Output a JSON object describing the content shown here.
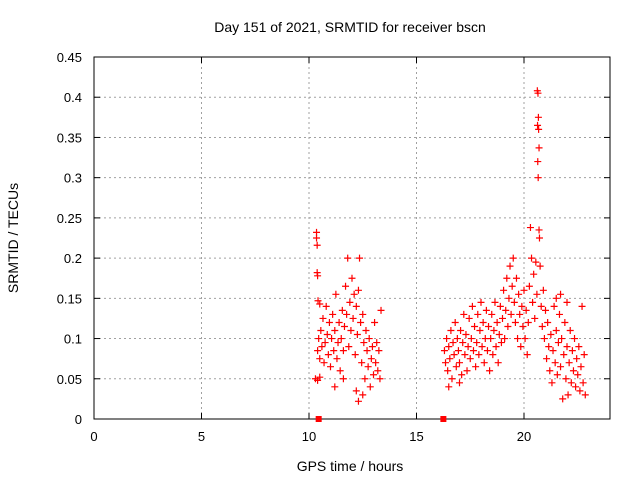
{
  "chart_data": {
    "type": "scatter",
    "title": "Day 151 of 2021, SRMTID for receiver bscn",
    "xlabel": "GPS time / hours",
    "ylabel": "SRMTID / TECUs",
    "xlim": [
      0,
      24
    ],
    "ylim": [
      0,
      0.45
    ],
    "x_ticks": [
      0,
      5,
      10,
      15,
      20
    ],
    "x_tick_labels": [
      "0",
      "5",
      "10",
      "15",
      "20"
    ],
    "y_ticks": [
      0,
      0.05,
      0.1,
      0.15,
      0.2,
      0.25,
      0.3,
      0.35,
      0.4,
      0.45
    ],
    "y_tick_labels": [
      "0",
      "0.05",
      "0.1",
      "0.15",
      "0.2",
      "0.25",
      "0.3",
      "0.35",
      "0.4",
      "0.45"
    ],
    "grid": true,
    "marker": "+",
    "color": "#ff0000",
    "zero_markers": {
      "marker": "square",
      "points": [
        [
          10.45,
          0
        ],
        [
          16.25,
          0
        ]
      ]
    },
    "series": [
      {
        "name": "segment-1",
        "points": [
          [
            10.35,
            0.232
          ],
          [
            10.35,
            0.225
          ],
          [
            10.38,
            0.216
          ],
          [
            10.38,
            0.182
          ],
          [
            10.4,
            0.178
          ],
          [
            10.42,
            0.147
          ],
          [
            10.5,
            0.143
          ],
          [
            10.3,
            0.05
          ],
          [
            10.4,
            0.048
          ],
          [
            10.5,
            0.052
          ],
          [
            10.4,
            0.085
          ],
          [
            10.45,
            0.1
          ],
          [
            10.5,
            0.075
          ],
          [
            10.55,
            0.11
          ],
          [
            10.6,
            0.09
          ],
          [
            10.65,
            0.125
          ],
          [
            10.7,
            0.07
          ],
          [
            10.75,
            0.095
          ],
          [
            10.8,
            0.14
          ],
          [
            10.85,
            0.105
          ],
          [
            10.9,
            0.08
          ],
          [
            10.95,
            0.12
          ],
          [
            11.0,
            0.065
          ],
          [
            11.05,
            0.1
          ],
          [
            11.1,
            0.13
          ],
          [
            11.15,
            0.085
          ],
          [
            11.2,
            0.11
          ],
          [
            11.25,
            0.155
          ],
          [
            11.3,
            0.075
          ],
          [
            11.35,
            0.095
          ],
          [
            11.4,
            0.12
          ],
          [
            11.45,
            0.06
          ],
          [
            11.5,
            0.1
          ],
          [
            11.55,
            0.135
          ],
          [
            11.6,
            0.085
          ],
          [
            11.65,
            0.115
          ],
          [
            11.7,
            0.165
          ],
          [
            11.75,
            0.13
          ],
          [
            11.8,
            0.2
          ],
          [
            11.85,
            0.09
          ],
          [
            11.9,
            0.145
          ],
          [
            11.95,
            0.11
          ],
          [
            12.0,
            0.175
          ],
          [
            12.05,
            0.125
          ],
          [
            12.1,
            0.155
          ],
          [
            12.15,
            0.08
          ],
          [
            12.2,
            0.14
          ],
          [
            12.25,
            0.105
          ],
          [
            12.3,
            0.16
          ],
          [
            12.35,
            0.2
          ],
          [
            12.4,
            0.12
          ],
          [
            12.45,
            0.07
          ],
          [
            12.5,
            0.13
          ],
          [
            12.55,
            0.095
          ],
          [
            12.6,
            0.05
          ],
          [
            12.65,
            0.11
          ],
          [
            12.7,
            0.085
          ],
          [
            12.75,
            0.065
          ],
          [
            12.8,
            0.1
          ],
          [
            12.85,
            0.04
          ],
          [
            12.9,
            0.075
          ],
          [
            12.95,
            0.09
          ],
          [
            13.0,
            0.055
          ],
          [
            13.05,
            0.12
          ],
          [
            13.1,
            0.07
          ],
          [
            13.15,
            0.095
          ],
          [
            13.2,
            0.06
          ],
          [
            13.25,
            0.085
          ],
          [
            13.3,
            0.05
          ],
          [
            13.35,
            0.135
          ],
          [
            12.2,
            0.035
          ],
          [
            12.3,
            0.022
          ],
          [
            12.5,
            0.03
          ],
          [
            11.2,
            0.04
          ],
          [
            11.6,
            0.05
          ]
        ]
      },
      {
        "name": "segment-2",
        "points": [
          [
            16.3,
            0.085
          ],
          [
            16.35,
            0.07
          ],
          [
            16.4,
            0.1
          ],
          [
            16.45,
            0.06
          ],
          [
            16.5,
            0.09
          ],
          [
            16.55,
            0.075
          ],
          [
            16.6,
            0.11
          ],
          [
            16.65,
            0.05
          ],
          [
            16.7,
            0.095
          ],
          [
            16.75,
            0.08
          ],
          [
            16.8,
            0.12
          ],
          [
            16.85,
            0.065
          ],
          [
            16.9,
            0.1
          ],
          [
            16.95,
            0.085
          ],
          [
            17.0,
            0.07
          ],
          [
            17.05,
            0.11
          ],
          [
            17.1,
            0.055
          ],
          [
            17.15,
            0.095
          ],
          [
            17.2,
            0.13
          ],
          [
            17.25,
            0.08
          ],
          [
            17.3,
            0.105
          ],
          [
            17.35,
            0.06
          ],
          [
            17.4,
            0.09
          ],
          [
            17.45,
            0.125
          ],
          [
            17.5,
            0.075
          ],
          [
            17.55,
            0.1
          ],
          [
            17.6,
            0.14
          ],
          [
            17.65,
            0.085
          ],
          [
            17.7,
            0.115
          ],
          [
            17.75,
            0.065
          ],
          [
            17.8,
            0.095
          ],
          [
            17.85,
            0.13
          ],
          [
            17.9,
            0.08
          ],
          [
            17.95,
            0.11
          ],
          [
            18.0,
            0.145
          ],
          [
            18.05,
            0.09
          ],
          [
            18.1,
            0.12
          ],
          [
            18.15,
            0.07
          ],
          [
            18.2,
            0.1
          ],
          [
            18.25,
            0.135
          ],
          [
            18.3,
            0.085
          ],
          [
            18.35,
            0.115
          ],
          [
            18.4,
            0.06
          ],
          [
            18.45,
            0.1
          ],
          [
            18.5,
            0.13
          ],
          [
            18.55,
            0.08
          ],
          [
            18.6,
            0.11
          ],
          [
            18.65,
            0.145
          ],
          [
            18.7,
            0.09
          ],
          [
            18.75,
            0.12
          ],
          [
            18.8,
            0.07
          ],
          [
            18.85,
            0.105
          ],
          [
            18.9,
            0.14
          ],
          [
            18.95,
            0.095
          ],
          [
            19.0,
            0.125
          ],
          [
            19.05,
            0.16
          ],
          [
            19.1,
            0.1
          ],
          [
            19.15,
            0.135
          ],
          [
            19.2,
            0.175
          ],
          [
            19.25,
            0.115
          ],
          [
            19.3,
            0.15
          ],
          [
            19.35,
            0.19
          ],
          [
            19.4,
            0.13
          ],
          [
            19.45,
            0.165
          ],
          [
            19.5,
            0.2
          ],
          [
            19.55,
            0.145
          ],
          [
            19.6,
            0.12
          ],
          [
            19.65,
            0.175
          ],
          [
            19.7,
            0.1
          ],
          [
            19.75,
            0.155
          ],
          [
            19.8,
            0.13
          ],
          [
            19.85,
            0.09
          ],
          [
            19.9,
            0.14
          ],
          [
            19.95,
            0.115
          ],
          [
            20.0,
            0.16
          ],
          [
            20.05,
            0.1
          ],
          [
            20.1,
            0.135
          ],
          [
            20.15,
            0.08
          ],
          [
            20.2,
            0.12
          ],
          [
            20.25,
            0.165
          ],
          [
            20.3,
            0.238
          ],
          [
            20.35,
            0.2
          ],
          [
            20.4,
            0.145
          ],
          [
            20.45,
            0.18
          ],
          [
            20.5,
            0.125
          ],
          [
            20.55,
            0.195
          ],
          [
            20.6,
            0.155
          ],
          [
            20.62,
            0.408
          ],
          [
            20.65,
            0.405
          ],
          [
            20.67,
            0.375
          ],
          [
            20.63,
            0.365
          ],
          [
            20.68,
            0.36
          ],
          [
            20.7,
            0.337
          ],
          [
            20.64,
            0.32
          ],
          [
            20.66,
            0.3
          ],
          [
            20.7,
            0.235
          ],
          [
            20.72,
            0.225
          ],
          [
            20.75,
            0.19
          ],
          [
            20.8,
            0.14
          ],
          [
            20.85,
            0.115
          ],
          [
            20.9,
            0.16
          ],
          [
            20.95,
            0.1
          ],
          [
            21.0,
            0.135
          ],
          [
            21.05,
            0.075
          ],
          [
            21.1,
            0.12
          ],
          [
            21.15,
            0.09
          ],
          [
            21.2,
            0.06
          ],
          [
            21.25,
            0.105
          ],
          [
            21.3,
            0.045
          ],
          [
            21.35,
            0.085
          ],
          [
            21.4,
            0.14
          ],
          [
            21.45,
            0.07
          ],
          [
            21.5,
            0.11
          ],
          [
            21.55,
            0.055
          ],
          [
            21.6,
            0.095
          ],
          [
            21.65,
            0.13
          ],
          [
            21.7,
            0.065
          ],
          [
            21.75,
            0.1
          ],
          [
            21.8,
            0.025
          ],
          [
            21.85,
            0.08
          ],
          [
            21.9,
            0.12
          ],
          [
            21.95,
            0.05
          ],
          [
            22.0,
            0.09
          ],
          [
            22.05,
            0.03
          ],
          [
            22.1,
            0.07
          ],
          [
            22.15,
            0.11
          ],
          [
            22.2,
            0.045
          ],
          [
            22.25,
            0.085
          ],
          [
            22.3,
            0.06
          ],
          [
            22.35,
            0.1
          ],
          [
            22.4,
            0.04
          ],
          [
            22.45,
            0.075
          ],
          [
            22.5,
            0.055
          ],
          [
            22.55,
            0.09
          ],
          [
            22.6,
            0.035
          ],
          [
            22.65,
            0.065
          ],
          [
            22.7,
            0.14
          ],
          [
            22.75,
            0.045
          ],
          [
            22.8,
            0.08
          ],
          [
            22.85,
            0.03
          ],
          [
            21.5,
            0.15
          ],
          [
            21.7,
            0.155
          ],
          [
            22.0,
            0.145
          ],
          [
            16.5,
            0.04
          ],
          [
            17.0,
            0.045
          ]
        ]
      }
    ]
  }
}
